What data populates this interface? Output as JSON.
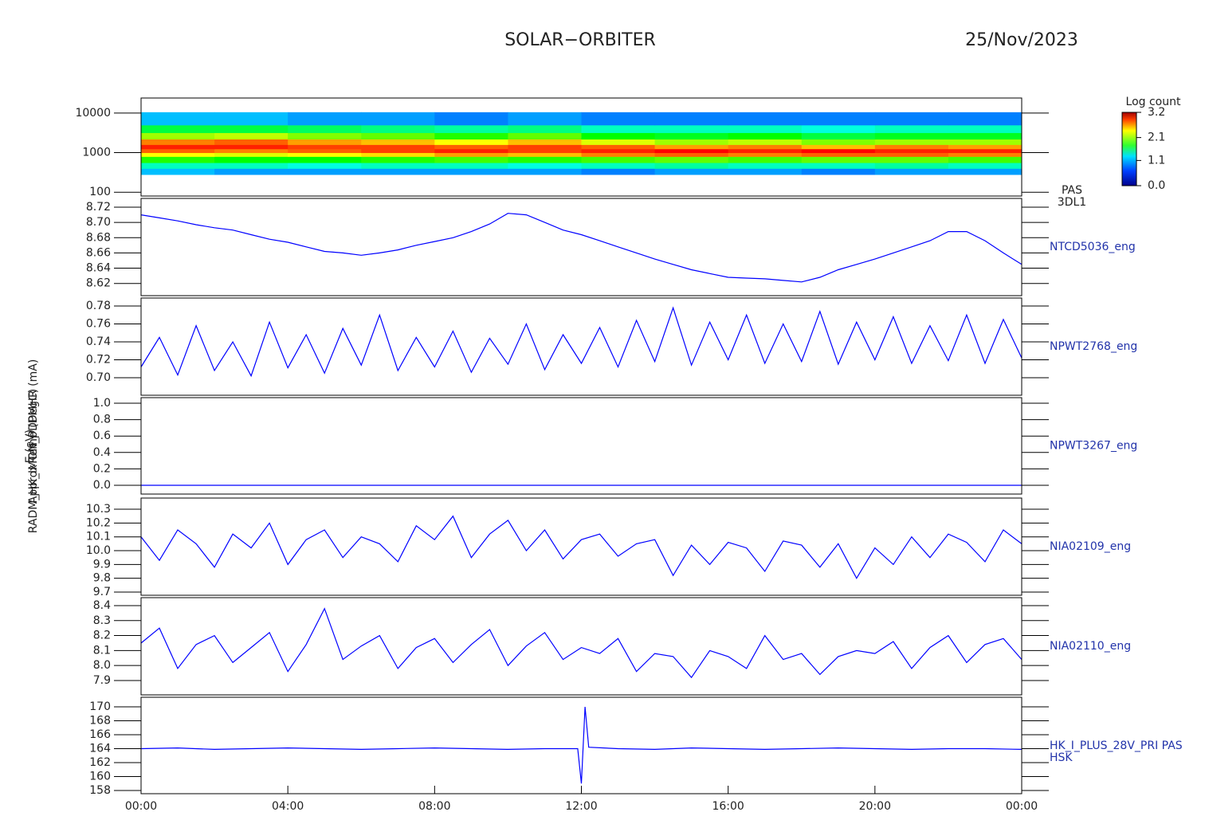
{
  "header": {
    "title": "SOLAR−ORBITER",
    "date": "25/Nov/2023"
  },
  "chart_data": [
    {
      "type": "heatmap",
      "log_scale": true,
      "ylabel": "E (eV)",
      "labels": [
        "PAS",
        "3DL1"
      ],
      "xbins": [
        0,
        2,
        4,
        6,
        8,
        10,
        12,
        14,
        16,
        18,
        20,
        22,
        24
      ],
      "ybins": [
        280,
        400,
        560,
        800,
        1000,
        1250,
        1600,
        2200,
        3200,
        5000,
        10500
      ],
      "values": [
        [
          0.6,
          0.5,
          0.5,
          0.5,
          0.5,
          0.5,
          0.4,
          0.5,
          0.5,
          0.4,
          0.5,
          0.5
        ],
        [
          1.0,
          1.0,
          0.9,
          1.0,
          1.0,
          0.9,
          1.0,
          1.1,
          1.0,
          1.0,
          1.1,
          1.0
        ],
        [
          1.7,
          1.6,
          1.6,
          1.7,
          1.8,
          1.7,
          1.8,
          1.9,
          1.8,
          1.9,
          1.9,
          1.8
        ],
        [
          2.4,
          2.3,
          2.4,
          2.5,
          2.7,
          2.6,
          2.8,
          2.9,
          2.8,
          2.9,
          2.9,
          2.8
        ],
        [
          2.9,
          2.8,
          2.9,
          3.0,
          3.1,
          3.0,
          3.1,
          3.2,
          3.1,
          3.2,
          3.1,
          3.1
        ],
        [
          3.1,
          3.1,
          3.0,
          3.0,
          2.9,
          3.0,
          2.9,
          2.7,
          2.8,
          2.6,
          2.8,
          2.7
        ],
        [
          2.8,
          2.9,
          2.7,
          2.6,
          2.4,
          2.6,
          2.3,
          2.1,
          2.2,
          2.0,
          2.1,
          2.1
        ],
        [
          2.1,
          2.2,
          2.0,
          1.9,
          1.7,
          1.9,
          1.6,
          1.5,
          1.6,
          1.4,
          1.5,
          1.5
        ],
        [
          1.4,
          1.4,
          1.3,
          1.2,
          1.1,
          1.2,
          1.0,
          1.0,
          1.0,
          0.9,
          1.0,
          1.0
        ],
        [
          0.6,
          0.6,
          0.5,
          0.5,
          0.4,
          0.5,
          0.4,
          0.4,
          0.4,
          0.4,
          0.4,
          0.4
        ]
      ],
      "ylim": [
        80,
        24000
      ],
      "yticks": [
        100,
        1000,
        10000
      ],
      "colorbar": {
        "label": "Log count",
        "lim": [
          0,
          3.2
        ],
        "ticks": [
          {
            "value": 0,
            "label": "0.0"
          },
          1.1,
          2.1,
          3.2
        ]
      }
    },
    {
      "type": "line",
      "ylabel": "Approx Temp (DegC)",
      "labels": [
        "NTCD5036_eng"
      ],
      "color": "#0000ff",
      "x": [
        0,
        0.5,
        1,
        1.5,
        2,
        2.5,
        3,
        3.5,
        4,
        4.5,
        5,
        5.5,
        6,
        6.5,
        7,
        7.5,
        8,
        8.5,
        9,
        9.5,
        10,
        10.5,
        11,
        11.5,
        12,
        12.5,
        13,
        13.5,
        14,
        14.5,
        15,
        15.5,
        16,
        16.5,
        17,
        17.5,
        18,
        18.5,
        19,
        19.5,
        20,
        20.5,
        21,
        21.5,
        22,
        22.5,
        23,
        23.5,
        24
      ],
      "values": [
        8.71,
        8.706,
        8.702,
        8.697,
        8.693,
        8.69,
        8.684,
        8.678,
        8.674,
        8.668,
        8.662,
        8.66,
        8.657,
        8.66,
        8.664,
        8.67,
        8.675,
        8.68,
        8.688,
        8.698,
        8.712,
        8.71,
        8.7,
        8.69,
        8.684,
        8.676,
        8.668,
        8.66,
        8.652,
        8.645,
        8.638,
        8.633,
        8.628,
        8.627,
        8.626,
        8.624,
        8.622,
        8.628,
        8.638,
        8.645,
        8.652,
        8.66,
        8.668,
        8.676,
        8.688,
        8.688,
        8.676,
        8.66,
        8.645
      ],
      "ylim": [
        8.604,
        8.7315
      ],
      "yticks": [
        8.62,
        8.64,
        8.66,
        8.68,
        {
          "value": 8.7,
          "label": "8.70"
        },
        8.72
      ]
    },
    {
      "type": "line",
      "labels": [
        "NPWT2768_eng"
      ],
      "color": "#0000ff",
      "x": [
        0,
        0.5,
        1,
        1.5,
        2,
        2.5,
        3,
        3.5,
        4,
        4.5,
        5,
        5.5,
        6,
        6.5,
        7,
        7.5,
        8,
        8.5,
        9,
        9.5,
        10,
        10.5,
        11,
        11.5,
        12,
        12.5,
        13,
        13.5,
        14,
        14.5,
        15,
        15.5,
        16,
        16.5,
        17,
        17.5,
        18,
        18.5,
        19,
        19.5,
        20,
        20.5,
        21,
        21.5,
        22,
        22.5,
        23,
        23.5,
        24
      ],
      "values": [
        0.712,
        0.745,
        0.703,
        0.758,
        0.708,
        0.74,
        0.702,
        0.762,
        0.711,
        0.748,
        0.705,
        0.755,
        0.714,
        0.77,
        0.708,
        0.745,
        0.712,
        0.752,
        0.706,
        0.744,
        0.715,
        0.76,
        0.709,
        0.748,
        0.716,
        0.756,
        0.712,
        0.764,
        0.718,
        0.778,
        0.714,
        0.762,
        0.72,
        0.77,
        0.716,
        0.76,
        0.718,
        0.774,
        0.715,
        0.762,
        0.72,
        0.768,
        0.716,
        0.758,
        0.719,
        0.77,
        0.716,
        0.765,
        0.722
      ],
      "ylim": [
        0.6804,
        0.7889
      ],
      "yticks": [
        {
          "value": 0.7,
          "label": "0.70"
        },
        0.72,
        0.74,
        0.76,
        0.78
      ]
    },
    {
      "type": "line",
      "labels": [
        "NPWT3267_eng"
      ],
      "color": "#0000ff",
      "x": [
        0,
        0.5,
        1,
        1.5,
        2,
        2.5,
        3,
        3.5,
        4,
        4.5,
        5,
        5.5,
        6,
        6.5,
        7,
        7.5,
        8,
        8.5,
        9,
        9.5,
        10,
        10.5,
        11,
        11.5,
        12,
        12.5,
        13,
        13.5,
        14,
        14.5,
        15,
        15.5,
        16,
        16.5,
        17,
        17.5,
        18,
        18.5,
        19,
        19.5,
        20,
        20.5,
        21,
        21.5,
        22,
        22.5,
        23,
        23.5,
        24
      ],
      "values": [
        0,
        0,
        0,
        0,
        0,
        0,
        0,
        0,
        0,
        0,
        0,
        0,
        0,
        0,
        0,
        0,
        0,
        0,
        0,
        0,
        0,
        0,
        0,
        0,
        0,
        0,
        0,
        0,
        0,
        0,
        0,
        0,
        0,
        0,
        0,
        0,
        0,
        0,
        0,
        0,
        0,
        0,
        0,
        0,
        0,
        0,
        0,
        0,
        0
      ],
      "ylim": [
        -0.107,
        1.068
      ],
      "yticks": [
        {
          "value": 0,
          "label": "0.0"
        },
        0.2,
        0.4,
        0.6,
        0.8,
        {
          "value": 1,
          "label": "1.0"
        }
      ]
    },
    {
      "type": "line",
      "labels": [
        "NIA02109_eng"
      ],
      "color": "#0000ff",
      "x": [
        0,
        0.5,
        1,
        1.5,
        2,
        2.5,
        3,
        3.5,
        4,
        4.5,
        5,
        5.5,
        6,
        6.5,
        7,
        7.5,
        8,
        8.5,
        9,
        9.5,
        10,
        10.5,
        11,
        11.5,
        12,
        12.5,
        13,
        13.5,
        14,
        14.5,
        15,
        15.5,
        16,
        16.5,
        17,
        17.5,
        18,
        18.5,
        19,
        19.5,
        20,
        20.5,
        21,
        21.5,
        22,
        22.5,
        23,
        23.5,
        24
      ],
      "values": [
        10.1,
        9.93,
        10.15,
        10.05,
        9.88,
        10.12,
        10.02,
        10.2,
        9.9,
        10.08,
        10.15,
        9.95,
        10.1,
        10.05,
        9.92,
        10.18,
        10.08,
        10.25,
        9.95,
        10.12,
        10.22,
        10.0,
        10.15,
        9.94,
        10.08,
        10.12,
        9.96,
        10.05,
        10.08,
        9.82,
        10.04,
        9.9,
        10.06,
        10.02,
        9.85,
        10.07,
        10.04,
        9.88,
        10.05,
        9.8,
        10.02,
        9.9,
        10.1,
        9.95,
        10.12,
        10.06,
        9.92,
        10.15,
        10.05
      ],
      "ylim": [
        9.677,
        10.381
      ],
      "yticks": [
        9.7,
        9.8,
        9.9,
        {
          "value": 10,
          "label": "10.0"
        },
        10.1,
        10.2,
        10.3
      ]
    },
    {
      "type": "line",
      "labels": [
        "NIA02110_eng"
      ],
      "color": "#0000ff",
      "x": [
        0,
        0.5,
        1,
        1.5,
        2,
        2.5,
        3,
        3.5,
        4,
        4.5,
        5,
        5.5,
        6,
        6.5,
        7,
        7.5,
        8,
        8.5,
        9,
        9.5,
        10,
        10.5,
        11,
        11.5,
        12,
        12.5,
        13,
        13.5,
        14,
        14.5,
        15,
        15.5,
        16,
        16.5,
        17,
        17.5,
        18,
        18.5,
        19,
        19.5,
        20,
        20.5,
        21,
        21.5,
        22,
        22.5,
        23,
        23.5,
        24
      ],
      "values": [
        8.15,
        8.25,
        7.98,
        8.14,
        8.2,
        8.02,
        8.12,
        8.22,
        7.96,
        8.14,
        8.38,
        8.04,
        8.13,
        8.2,
        7.98,
        8.12,
        8.18,
        8.02,
        8.14,
        8.24,
        8.0,
        8.13,
        8.22,
        8.04,
        8.12,
        8.08,
        8.18,
        7.96,
        8.08,
        8.06,
        7.92,
        8.1,
        8.06,
        7.98,
        8.2,
        8.04,
        8.08,
        7.94,
        8.06,
        8.1,
        8.08,
        8.16,
        7.98,
        8.12,
        8.2,
        8.02,
        8.14,
        8.18,
        8.04
      ],
      "ylim": [
        7.804,
        8.453
      ],
      "yticks": [
        7.9,
        {
          "value": 8,
          "label": "8.0"
        },
        8.1,
        8.2,
        8.3,
        8.4
      ]
    },
    {
      "type": "line",
      "ylabel": "RADM_HK_IMON_PDPMHR (mA)",
      "labels": [
        "HK_I_PLUS_28V_PRI PAS",
        "HSK"
      ],
      "color": "#0000ff",
      "x": [
        0,
        1,
        2,
        3,
        4,
        5,
        6,
        7,
        8,
        9,
        10,
        11,
        11.9,
        12,
        12.1,
        12.2,
        13,
        14,
        15,
        16,
        17,
        18,
        19,
        20,
        21,
        22,
        23,
        24
      ],
      "values": [
        164.0,
        164.1,
        163.9,
        164.0,
        164.1,
        164.0,
        163.9,
        164.0,
        164.1,
        164.0,
        163.9,
        164.0,
        164.0,
        159.0,
        170.0,
        164.2,
        164.0,
        163.9,
        164.1,
        164.0,
        163.9,
        164.0,
        164.1,
        164.0,
        163.9,
        164.0,
        164.0,
        163.9
      ],
      "ylim": [
        157.54,
        171.37
      ],
      "yticks": [
        158,
        160,
        162,
        164,
        166,
        168,
        170
      ],
      "xlim": [
        0,
        24
      ],
      "xticks": [
        {
          "value": 0,
          "label": "00:00"
        },
        {
          "value": 4,
          "label": "04:00"
        },
        {
          "value": 8,
          "label": "08:00"
        },
        {
          "value": 12,
          "label": "12:00"
        },
        {
          "value": 16,
          "label": "16:00"
        },
        {
          "value": 20,
          "label": "20:00"
        },
        {
          "value": 24,
          "label": "00:00"
        }
      ]
    }
  ]
}
